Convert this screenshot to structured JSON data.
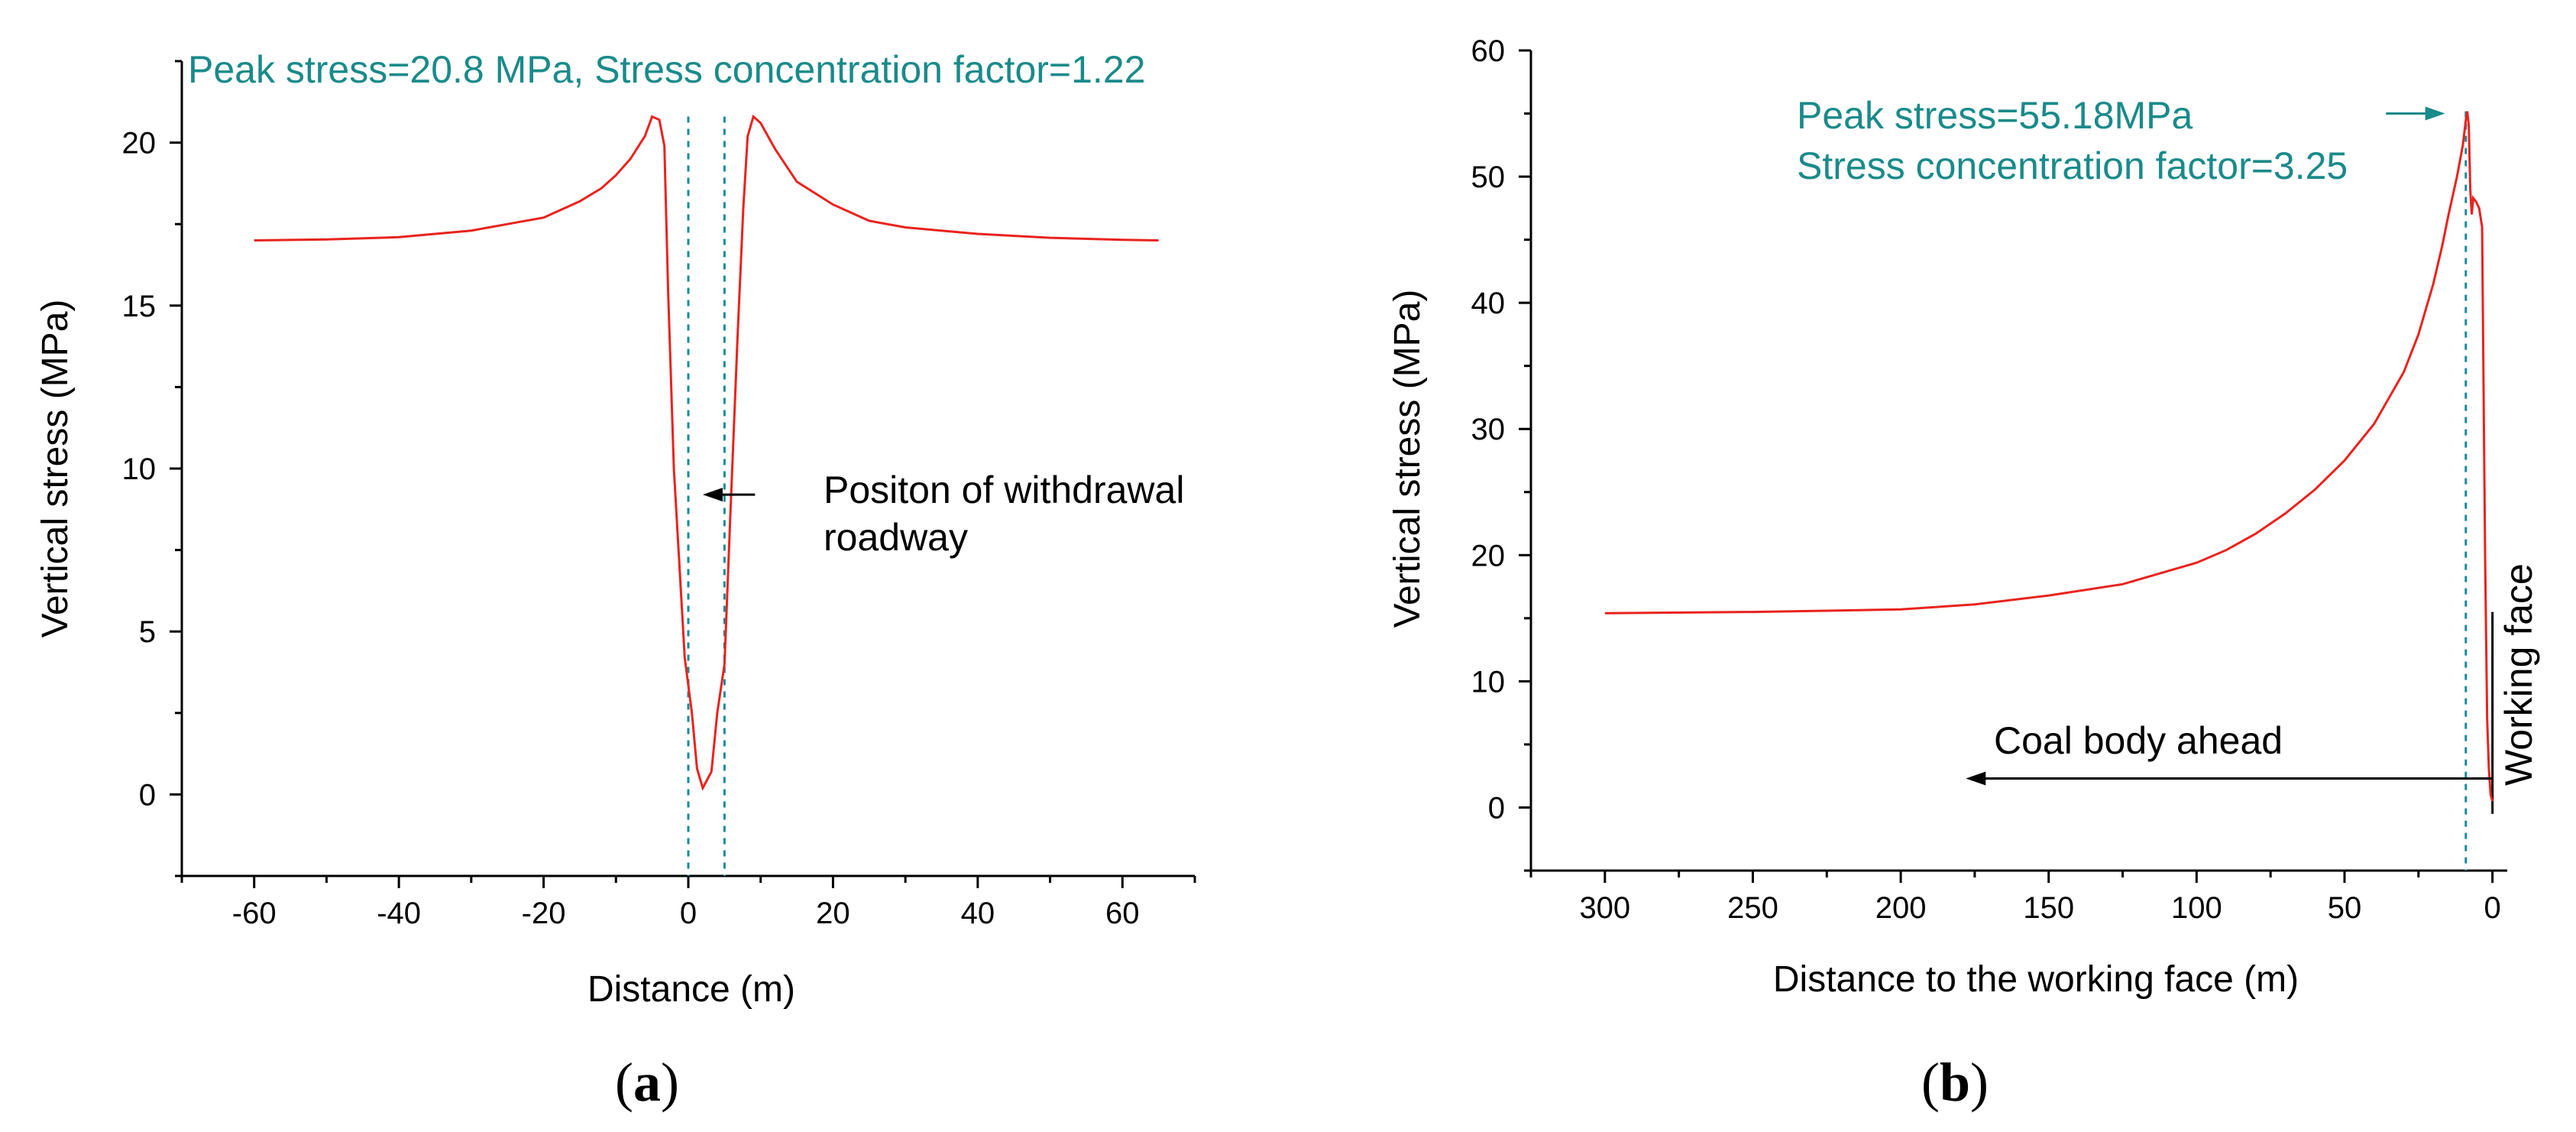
{
  "colors": {
    "series": "#e8231e",
    "annotation": "#1a8a8a",
    "guide": "#1a8a9a",
    "axis": "#000000"
  },
  "chart_data": [
    {
      "panel": "(a)",
      "panel_letter": "a",
      "type": "line",
      "xlabel": "Distance (m)",
      "ylabel": "Vertical stress (MPa)",
      "xlim": [
        -70,
        70
      ],
      "ylim": [
        -2.5,
        22.5
      ],
      "xticks": [
        -60,
        -40,
        -20,
        0,
        20,
        40,
        60
      ],
      "xtick_labels": [
        "-60",
        "-40",
        "-20",
        "0",
        "20",
        "40",
        "60"
      ],
      "yticks": [
        0,
        5,
        10,
        15,
        20
      ],
      "ytick_labels": [
        "0",
        "5",
        "10",
        "15",
        "20"
      ],
      "grid": false,
      "series": [
        {
          "name": "Vertical stress",
          "x": [
            -60,
            -50,
            -40,
            -30,
            -25,
            -20,
            -15,
            -12,
            -10,
            -8,
            -6,
            -5,
            -4,
            -3.3,
            -3.3,
            -2.8,
            -2.0,
            -0.5,
            0.5,
            1.2,
            2.0,
            3.2,
            4.0,
            5.0,
            5.8,
            6.8,
            7.6,
            8.2,
            9.0,
            10.0,
            12.0,
            15.0,
            20.0,
            25.0,
            30.0,
            40.0,
            50.0,
            60.0,
            65.0
          ],
          "y": [
            17.0,
            17.03,
            17.1,
            17.3,
            17.5,
            17.7,
            18.2,
            18.6,
            19.0,
            19.5,
            20.2,
            20.8,
            20.7,
            19.9,
            19.9,
            15.5,
            10.0,
            4.2,
            2.5,
            0.8,
            0.2,
            0.7,
            2.5,
            4.0,
            8.5,
            14.0,
            18.0,
            20.2,
            20.8,
            20.6,
            19.8,
            18.8,
            18.1,
            17.6,
            17.4,
            17.2,
            17.08,
            17.02,
            17.0
          ]
        }
      ],
      "guide_lines_x": [
        0,
        5
      ],
      "annotations": {
        "peak": "Peak stress=20.8 MPa, Stress concentration factor=1.22",
        "position_line1": "Positon of withdrawal",
        "position_line2": "roadway"
      },
      "arrow": {
        "from_x": 5,
        "to_x": 2,
        "y": 9.2
      }
    },
    {
      "panel": "(b)",
      "panel_letter": "b",
      "type": "line",
      "xlabel": "Distance to the working face (m)",
      "ylabel": "Vertical stress (MPa)",
      "xlim": [
        325,
        -5
      ],
      "ylim": [
        -5,
        60
      ],
      "xticks": [
        300,
        250,
        200,
        150,
        100,
        50,
        0
      ],
      "xtick_labels": [
        "300",
        "250",
        "200",
        "150",
        "100",
        "50",
        "0"
      ],
      "yticks": [
        0,
        10,
        20,
        30,
        40,
        50,
        60
      ],
      "ytick_labels": [
        "0",
        "10",
        "20",
        "30",
        "40",
        "50",
        "60"
      ],
      "grid": false,
      "series": [
        {
          "name": "Vertical stress",
          "x": [
            300,
            250,
            200,
            175,
            150,
            125,
            100,
            90,
            80,
            70,
            60,
            50,
            40,
            30,
            25,
            20,
            17,
            15,
            12,
            10,
            9,
            8.5,
            8,
            7.5,
            7,
            6.5,
            5.5,
            4.5,
            3.5,
            2.5,
            1.8,
            1.2,
            0.6,
            0
          ],
          "y": [
            15.4,
            15.5,
            15.7,
            16.1,
            16.8,
            17.7,
            19.4,
            20.4,
            21.7,
            23.3,
            25.2,
            27.5,
            30.4,
            34.5,
            37.5,
            41.5,
            44.5,
            46.8,
            50.0,
            52.5,
            54.5,
            55.18,
            54.0,
            49.0,
            47.0,
            48.3,
            48.0,
            47.5,
            46.0,
            20.0,
            7.0,
            3.0,
            1.0,
            0.5
          ]
        }
      ],
      "guide_lines_x": [
        9
      ],
      "working_face_line": {
        "x": 0,
        "y_from": -0.5,
        "y_to": 15.5
      },
      "annotations": {
        "peak_line1": "Peak stress=55.18MPa",
        "peak_line2": "Stress concentration factor=3.25",
        "coal_body": "Coal body ahead",
        "working_face": "Working face"
      },
      "peak_arrow": {
        "from_x": 36,
        "to_x": 16,
        "y": 55.0
      },
      "coal_arrow": {
        "from_x": 0,
        "to_x": 178,
        "y": 2.3
      }
    }
  ]
}
